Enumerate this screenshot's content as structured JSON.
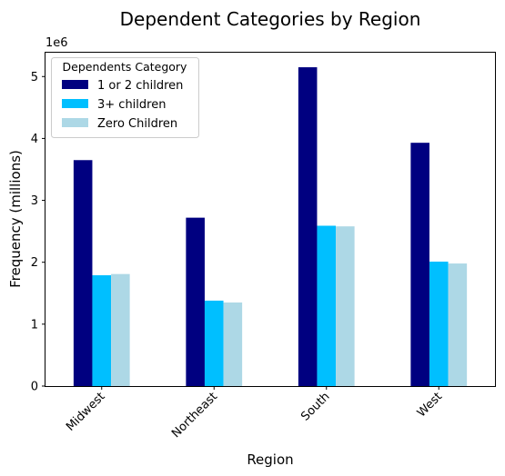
{
  "chart_data": {
    "type": "bar",
    "title": "Dependent Categories by Region",
    "xlabel": "Region",
    "ylabel": "Frequency (millions)",
    "y_offset_label": "1e6",
    "categories": [
      "Midwest",
      "Northeast",
      "South",
      "West"
    ],
    "series": [
      {
        "name": "1 or 2 children",
        "color": "#000080",
        "values": [
          3650000,
          2720000,
          5150000,
          3930000
        ]
      },
      {
        "name": "3+ children",
        "color": "#00bfff",
        "values": [
          1790000,
          1380000,
          2590000,
          2010000
        ]
      },
      {
        "name": "Zero Children",
        "color": "#add8e6",
        "values": [
          1810000,
          1350000,
          2580000,
          1980000
        ]
      }
    ],
    "ylim": [
      0,
      5400000
    ],
    "yticks": [
      0,
      1000000,
      2000000,
      3000000,
      4000000,
      5000000
    ],
    "ytick_labels": [
      "0",
      "1",
      "2",
      "3",
      "4",
      "5"
    ],
    "legend": {
      "title": "Dependents Category",
      "placement": "top-left"
    },
    "grid": false
  }
}
